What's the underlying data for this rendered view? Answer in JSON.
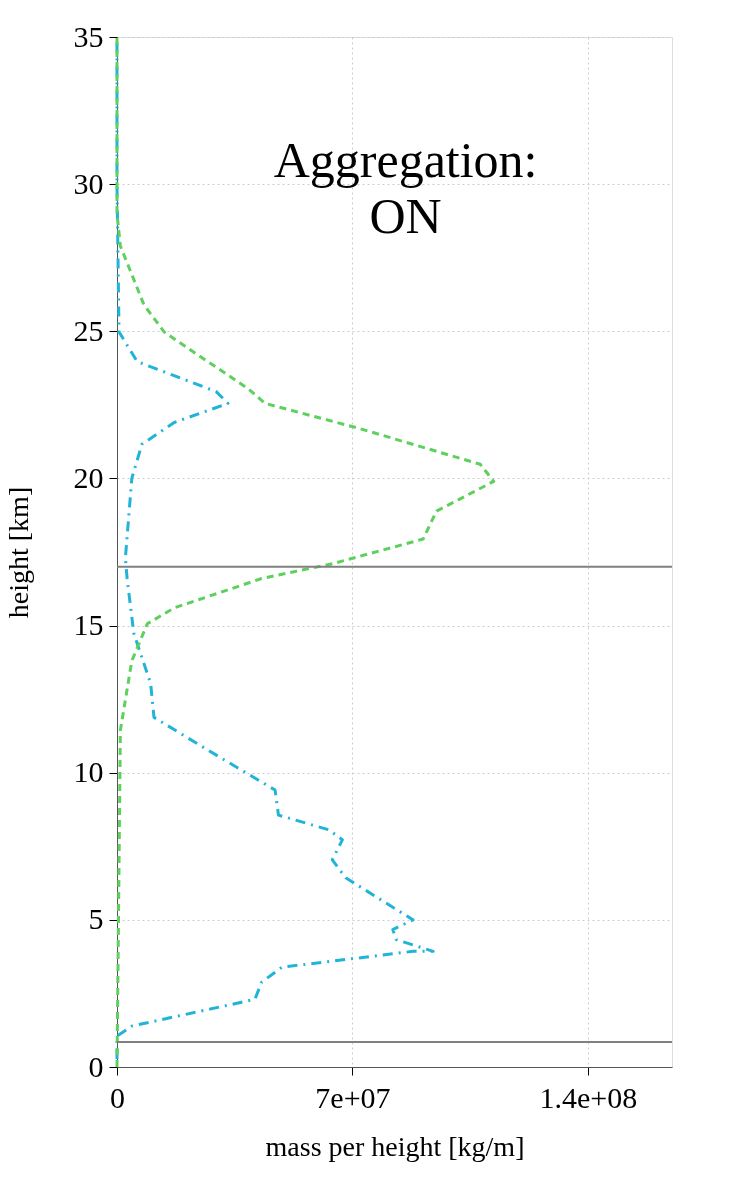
{
  "chart_data": {
    "type": "line",
    "xlabel": "mass per height [kg/m]",
    "ylabel": "height [km]",
    "annotations": [
      "Aggregation:\nON"
    ],
    "xlim": [
      0,
      165000000.0
    ],
    "xticks": [
      0,
      {
        "value": 70000000.0,
        "label": "7e+07"
      },
      {
        "value": 140000000.0,
        "label": "1.4e+08"
      }
    ],
    "ylim": [
      0,
      35
    ],
    "yticks": [
      0,
      5,
      10,
      15,
      20,
      25,
      30,
      35
    ],
    "grid": true,
    "ref_lines": [
      {
        "axis": "y",
        "value": 17,
        "color": "#808080"
      },
      {
        "axis": "y",
        "value": 0.85,
        "color": "#808080"
      }
    ],
    "series": [
      {
        "color": "#1fb4d8",
        "line_style": "dashdot",
        "x": [
          0,
          0,
          4400000.0,
          41000000.0,
          43000000.0,
          49000000.0,
          88000000.0,
          94000000.0,
          83000000.0,
          82000000.0,
          88000000.0,
          68000000.0,
          64000000.0,
          67000000.0,
          63000000.0,
          48000000.0,
          47000000.0,
          27000000.0,
          11000000.0,
          10000000.0,
          5000000.0,
          3000000.0,
          2500000.0,
          4400000.0,
          7400000.0,
          17000000.0,
          33000000.0,
          29500000.0,
          6000000.0,
          600000.0,
          0,
          0
        ],
        "values": [
          0.27,
          1.05,
          1.39,
          2.3,
          2.88,
          3.39,
          3.93,
          3.93,
          4.33,
          4.67,
          5.0,
          6.43,
          7.04,
          7.72,
          8.06,
          8.56,
          9.41,
          10.77,
          11.88,
          13.03,
          14.73,
          16.6,
          17.3,
          20.0,
          21.16,
          21.9,
          22.55,
          22.95,
          23.97,
          24.98,
          30,
          35
        ]
      },
      {
        "color": "#5dd05d",
        "line_style": "dashed",
        "x": [
          0,
          1000000.0,
          4400000.0,
          9000000.0,
          17000000.0,
          43000000.0,
          64000000.0,
          91000000.0,
          95000000.0,
          112000000.0,
          108000000.0,
          72000000.0,
          44000000.0,
          39000000.0,
          24000000.0,
          14000000.0,
          8000000.0,
          1000000.0,
          0,
          0
        ],
        "values": [
          0,
          11.44,
          13.8,
          15.06,
          15.6,
          16.6,
          17.1,
          17.94,
          18.89,
          19.9,
          20.48,
          21.7,
          22.55,
          23.05,
          24.2,
          24.98,
          25.9,
          27.9,
          29,
          35
        ]
      }
    ]
  }
}
